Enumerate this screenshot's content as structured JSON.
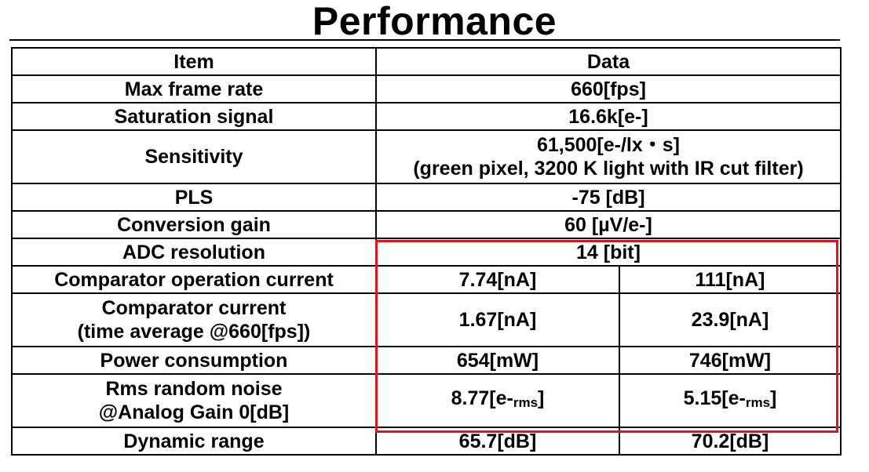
{
  "title": "Performance",
  "table": {
    "headers": [
      "Item",
      "Data"
    ],
    "rows": [
      {
        "item": "Max frame rate",
        "data": "660[fps]"
      },
      {
        "item": "Saturation signal",
        "data": "16.6k[e-]"
      },
      {
        "item": "Sensitivity",
        "data_line1": "61,500[e-/lx・s]",
        "data_line2": "(green pixel, 3200 K light with IR cut filter)"
      },
      {
        "item": "PLS",
        "data": "-75 [dB]"
      },
      {
        "item": "Conversion gain",
        "data": "60 [µV/e-]"
      },
      {
        "item": "ADC resolution",
        "data": "14 [bit]"
      },
      {
        "item": "Comparator operation current",
        "a": "7.74[nA]",
        "b": "111[nA]"
      },
      {
        "item_line1": "Comparator current",
        "item_line2": "(time average @660[fps])",
        "a": "1.67[nA]",
        "b": "23.9[nA]"
      },
      {
        "item": "Power consumption",
        "a": "654[mW]",
        "b": "746[mW]"
      },
      {
        "item_line1": "Rms random noise",
        "item_line2": "@Analog Gain 0[dB]",
        "a_main": "8.77[e-",
        "a_sub": "rms",
        "a_end": "]",
        "b_main": "5.15[e-",
        "b_sub": "rms",
        "b_end": "]"
      },
      {
        "item": "Dynamic range",
        "a": "65.7[dB]",
        "b": "70.2[dB]"
      }
    ]
  },
  "colors": {
    "highlight": "#e0141e",
    "text": "#000000",
    "background": "#ffffff"
  }
}
